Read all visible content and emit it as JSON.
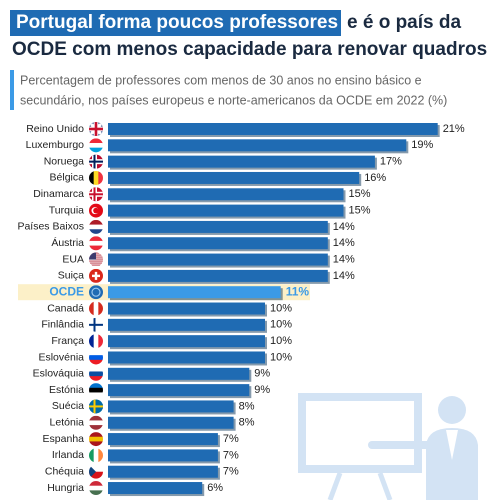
{
  "chart_data": {
    "type": "bar",
    "title": [
      "Portugal forma poucos professores",
      "e é o país da",
      "OCDE com menos capacidade para renovar quadros"
    ],
    "subtitle": [
      "Percentagem de professores com menos de 30 anos no ensino básico e",
      "secundário, nos países europeus e norte-americanos da OCDE em 2022 (%)"
    ],
    "categories": [
      "Reino Unido",
      "Luxemburgo",
      "Noruega",
      "Bélgica",
      "Dinamarca",
      "Turquia",
      "Países Baixos",
      "Áustria",
      "EUA",
      "Suiça",
      "OCDE",
      "Canadá",
      "Finlândia",
      "França",
      "Eslovénia",
      "Eslováquia",
      "Estónia",
      "Suécia",
      "Letónia",
      "Espanha",
      "Irlanda",
      "Chéquia",
      "Hungria"
    ],
    "values": [
      21,
      19,
      17,
      16,
      15,
      15,
      14,
      14,
      14,
      14,
      11,
      10,
      10,
      10,
      10,
      9,
      9,
      8,
      8,
      7,
      7,
      7,
      6
    ],
    "value_labels": [
      "21%",
      "19%",
      "17%",
      "16%",
      "15%",
      "15%",
      "14%",
      "14%",
      "14%",
      "14%",
      "11%",
      "10%",
      "10%",
      "10%",
      "10%",
      "9%",
      "9%",
      "8%",
      "8%",
      "7%",
      "7%",
      "7%",
      "6%"
    ],
    "color": "#1f6bb3",
    "highlight": 10,
    "highlight_color": "#3b9ae6"
  }
}
